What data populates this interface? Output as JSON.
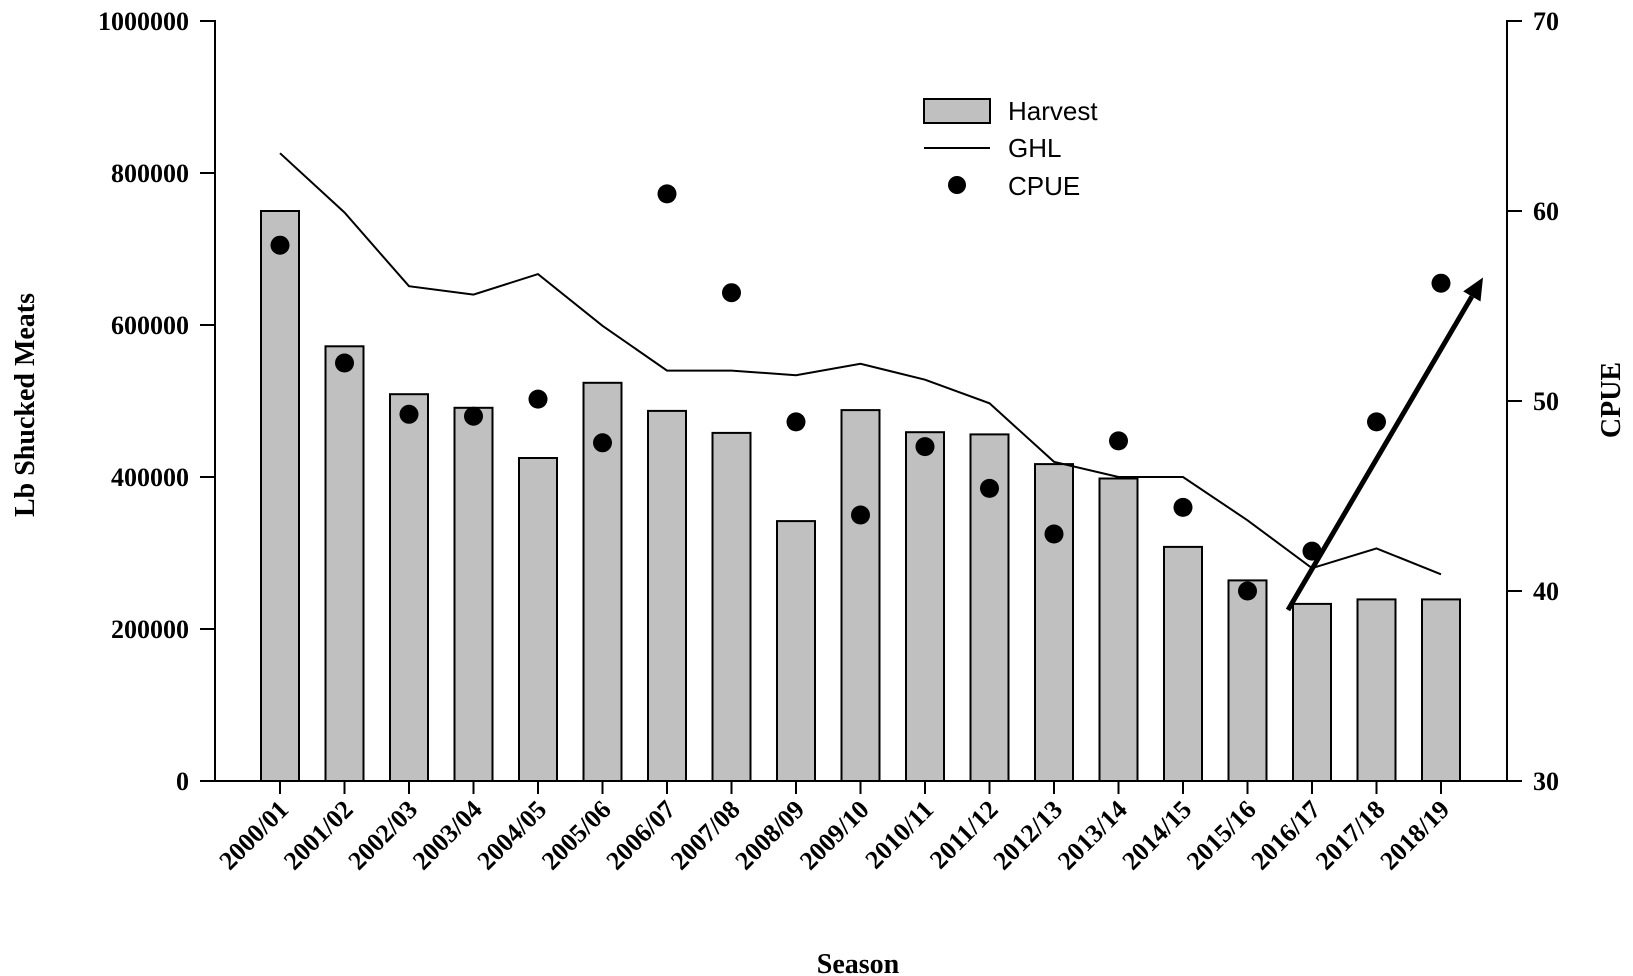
{
  "chart_data": {
    "type": "bar",
    "title": "",
    "xlabel": "Season",
    "ylabel": "Lb Shucked Meats",
    "y2label": "CPUE",
    "ylim": [
      0,
      1000000
    ],
    "y2lim": [
      30,
      70
    ],
    "yticks": [
      "0",
      "200000",
      "400000",
      "600000",
      "800000",
      "1000000"
    ],
    "y2ticks": [
      "30",
      "40",
      "50",
      "60",
      "70"
    ],
    "categories": [
      "2000/01",
      "2001/02",
      "2002/03",
      "2003/04",
      "2004/05",
      "2005/06",
      "2006/07",
      "2007/08",
      "2008/09",
      "2009/10",
      "2010/11",
      "2011/12",
      "2012/13",
      "2013/14",
      "2014/15",
      "2015/16",
      "2016/17",
      "2017/18",
      "2018/19"
    ],
    "series": [
      {
        "name": "Harvest",
        "kind": "bar",
        "axis": "left",
        "color": "#c0c0c0",
        "values": [
          750000,
          572000,
          509000,
          491000,
          425000,
          524000,
          487000,
          458000,
          342000,
          488000,
          459000,
          456000,
          417000,
          398000,
          308000,
          264000,
          233000,
          239000,
          239000
        ]
      },
      {
        "name": "GHL",
        "kind": "line",
        "axis": "left",
        "color": "#000000",
        "values": [
          826000,
          748000,
          651000,
          640000,
          667000,
          599000,
          540000,
          540000,
          534000,
          549000,
          528000,
          497000,
          420000,
          400000,
          400000,
          343000,
          280000,
          306000,
          272000
        ]
      },
      {
        "name": "CPUE",
        "kind": "scatter",
        "axis": "right",
        "color": "#000000",
        "values": [
          58.2,
          52.0,
          49.3,
          49.2,
          50.1,
          47.8,
          60.9,
          55.7,
          48.9,
          44.0,
          47.6,
          45.4,
          43.0,
          47.9,
          44.4,
          40.0,
          42.1,
          48.9,
          56.2
        ]
      }
    ],
    "grid": false,
    "legend": "top-center",
    "legend_items": [
      "Harvest",
      "GHL",
      "CPUE"
    ],
    "annotations": [
      {
        "kind": "arrow",
        "from": {
          "category": "2016/17",
          "y2": 39.0
        },
        "to": {
          "category": "2018/19+",
          "y2": 56.5
        }
      }
    ]
  }
}
